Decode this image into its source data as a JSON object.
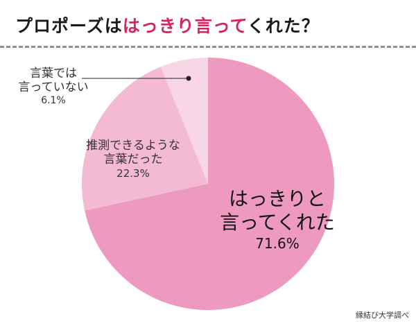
{
  "title": {
    "part1": "プロポーズは",
    "highlight": "はっきり言って",
    "part2": "くれた？"
  },
  "chart_data": {
    "type": "pie",
    "title": "プロポーズははっきり言ってくれた？",
    "slices": [
      {
        "label_lines": [
          "はっきりと",
          "言ってくれた"
        ],
        "percent_label": "71.6%",
        "value": 71.6,
        "color": "#ee99c0"
      },
      {
        "label_lines": [
          "推測できるような",
          "言葉だった"
        ],
        "percent_label": "22.3%",
        "value": 22.3,
        "color": "#f4b9d3"
      },
      {
        "label_lines": [
          "言葉では",
          "言っていない"
        ],
        "percent_label": "6.1%",
        "value": 6.1,
        "color": "#f8d6e6"
      }
    ],
    "start": "12 o'clock",
    "direction": "clockwise"
  },
  "source": "縁結び大学調べ",
  "colors": {
    "accent": "#d8245c",
    "divider": "#8f8f8f"
  }
}
